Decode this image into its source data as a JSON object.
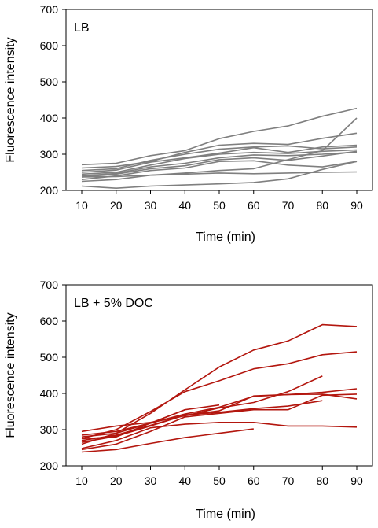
{
  "chart_data": [
    {
      "type": "line",
      "panel_label": "LB",
      "xlabel": "Time (min)",
      "ylabel": "Fluorescence intensity",
      "x_ticks": [
        10,
        20,
        30,
        40,
        50,
        60,
        70,
        80,
        90
      ],
      "y_ticks": [
        200,
        300,
        400,
        500,
        600,
        700
      ],
      "xlim": [
        10,
        90
      ],
      "ylim": [
        200,
        700
      ],
      "grid": false,
      "series_color": "#7f7f7f",
      "series": [
        {
          "x": [
            10,
            20,
            30,
            40,
            50,
            60,
            70,
            80,
            90
          ],
          "values": [
            271,
            275,
            296,
            310,
            343,
            363,
            378,
            405,
            427
          ]
        },
        {
          "x": [
            10,
            20,
            30,
            40,
            50,
            60,
            70,
            80,
            90
          ],
          "values": [
            262,
            266,
            280,
            305,
            325,
            330,
            327,
            344,
            358
          ]
        },
        {
          "x": [
            10,
            20,
            30,
            40,
            50,
            60,
            70,
            80,
            90
          ],
          "values": [
            255,
            260,
            283,
            300,
            314,
            320,
            323,
            315,
            320
          ]
        },
        {
          "x": [
            10,
            20,
            30,
            40,
            50,
            60,
            70,
            80,
            90
          ],
          "values": [
            250,
            256,
            278,
            290,
            303,
            318,
            305,
            320,
            325
          ]
        },
        {
          "x": [
            10,
            20,
            30,
            40,
            50,
            60,
            70,
            80,
            90
          ],
          "values": [
            245,
            250,
            270,
            288,
            300,
            305,
            302,
            308,
            312
          ]
        },
        {
          "x": [
            10,
            20,
            30,
            40,
            50,
            60,
            70,
            80,
            90
          ],
          "values": [
            240,
            247,
            265,
            275,
            290,
            298,
            296,
            300,
            306
          ]
        },
        {
          "x": [
            10,
            20,
            30,
            40,
            50,
            60,
            70,
            80,
            90
          ],
          "values": [
            237,
            245,
            260,
            268,
            285,
            290,
            283,
            295,
            308
          ]
        },
        {
          "x": [
            10,
            20,
            30,
            40,
            50,
            60,
            70,
            80,
            90
          ],
          "values": [
            230,
            240,
            255,
            262,
            280,
            282,
            270,
            265,
            280
          ]
        },
        {
          "x": [
            10,
            20,
            30,
            40,
            50,
            60,
            70,
            80,
            90
          ],
          "values": [
            225,
            230,
            242,
            248,
            255,
            260,
            285,
            310,
            400
          ]
        },
        {
          "x": [
            10,
            20,
            30,
            40,
            50,
            60,
            70,
            80,
            90
          ],
          "values": [
            237,
            238,
            242,
            245,
            248,
            246,
            248,
            250,
            251
          ]
        },
        {
          "x": [
            10,
            20,
            30,
            40,
            50,
            60,
            70,
            80,
            90
          ],
          "values": [
            212,
            206,
            212,
            215,
            218,
            222,
            232,
            258,
            280
          ]
        }
      ]
    },
    {
      "type": "line",
      "panel_label": "LB + 5% DOC",
      "xlabel": "Time (min)",
      "ylabel": "Fluorescence intensity",
      "x_ticks": [
        10,
        20,
        30,
        40,
        50,
        60,
        70,
        80,
        90
      ],
      "y_ticks": [
        200,
        300,
        400,
        500,
        600,
        700
      ],
      "xlim": [
        10,
        90
      ],
      "ylim": [
        200,
        700
      ],
      "grid": false,
      "series_color": "#b3160e",
      "series": [
        {
          "x": [
            10,
            20,
            30,
            40,
            50,
            60,
            70,
            80,
            90
          ],
          "values": [
            280,
            290,
            345,
            410,
            473,
            520,
            545,
            590,
            585
          ]
        },
        {
          "x": [
            10,
            20,
            30,
            40,
            50,
            60,
            70,
            80,
            90
          ],
          "values": [
            275,
            300,
            350,
            405,
            435,
            468,
            482,
            507,
            515
          ]
        },
        {
          "x": [
            10,
            20,
            30,
            40,
            50,
            60,
            70,
            80
          ],
          "values": [
            295,
            310,
            320,
            338,
            360,
            375,
            405,
            448
          ]
        },
        {
          "x": [
            10,
            20,
            30,
            40,
            50,
            60,
            70,
            80,
            90
          ],
          "values": [
            285,
            295,
            318,
            343,
            362,
            392,
            397,
            403,
            413
          ]
        },
        {
          "x": [
            10,
            20,
            30,
            40,
            50,
            60,
            70,
            80,
            90
          ],
          "values": [
            265,
            282,
            310,
            340,
            352,
            393,
            397,
            398,
            385
          ]
        },
        {
          "x": [
            10,
            20,
            30,
            40,
            50,
            60,
            70,
            80
          ],
          "values": [
            270,
            285,
            312,
            340,
            348,
            358,
            365,
            380
          ]
        },
        {
          "x": [
            10,
            20,
            30,
            40,
            50
          ],
          "values": [
            275,
            280,
            318,
            355,
            368
          ]
        },
        {
          "x": [
            10,
            20,
            30,
            40
          ],
          "values": [
            260,
            290,
            318,
            355
          ]
        },
        {
          "x": [
            10,
            20,
            30,
            40,
            50,
            60,
            70,
            80,
            90
          ],
          "values": [
            248,
            270,
            305,
            315,
            320,
            320,
            310,
            310,
            307
          ]
        },
        {
          "x": [
            10,
            20,
            30,
            40,
            50,
            60
          ],
          "values": [
            238,
            245,
            262,
            278,
            290,
            302
          ]
        },
        {
          "x": [
            10,
            20,
            30,
            40,
            50,
            60,
            70,
            80,
            90
          ],
          "values": [
            245,
            260,
            295,
            335,
            345,
            355,
            355,
            395,
            398
          ]
        }
      ]
    }
  ]
}
